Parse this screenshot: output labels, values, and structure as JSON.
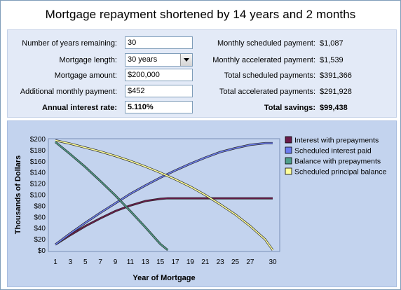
{
  "title": "Mortgage repayment shortened by 14 years and 2 months",
  "form": {
    "years_remaining": {
      "label": "Number of years remaining:",
      "value": "30"
    },
    "mortgage_length": {
      "label": "Mortgage length:",
      "value": "30 years"
    },
    "mortgage_amount": {
      "label": "Mortgage amount:",
      "value": "$200,000"
    },
    "additional_payment": {
      "label": "Additional monthly payment:",
      "value": "$452"
    },
    "interest_rate": {
      "label": "Annual interest rate:",
      "value": "5.110%"
    }
  },
  "results": {
    "monthly_scheduled": {
      "label": "Monthly scheduled payment:",
      "value": "$1,087"
    },
    "monthly_accelerated": {
      "label": "Monthly accelerated payment:",
      "value": "$1,539"
    },
    "total_scheduled": {
      "label": "Total scheduled payments:",
      "value": "$391,366"
    },
    "total_accelerated": {
      "label": "Total accelerated payments:",
      "value": "$291,928"
    },
    "total_savings": {
      "label": "Total savings:",
      "value": "$99,438"
    }
  },
  "chart_data": {
    "type": "line",
    "xlabel": "Year of Mortgage",
    "ylabel": "Thousands of Dollars",
    "xlim": [
      1,
      30
    ],
    "ylim": [
      0,
      200
    ],
    "xticks": [
      "1",
      "3",
      "5",
      "7",
      "9",
      "11",
      "13",
      "15",
      "17",
      "19",
      "21",
      "23",
      "25",
      "27",
      "30"
    ],
    "yticks": [
      "$0",
      "$20",
      "$40",
      "$60",
      "$80",
      "$100",
      "$120",
      "$140",
      "$160",
      "$180",
      "$200"
    ],
    "grid": false,
    "legend_position": "right",
    "series": [
      {
        "name": "Interest with prepayments",
        "color": "#6b1a4a",
        "x": [
          1,
          3,
          5,
          7,
          9,
          11,
          13,
          15,
          16,
          17,
          19,
          21,
          23,
          25,
          27,
          29,
          30
        ],
        "y": [
          10,
          27,
          43,
          57,
          70,
          80,
          88,
          92,
          93,
          93,
          93,
          93,
          93,
          93,
          93,
          93,
          93
        ]
      },
      {
        "name": "Scheduled interest paid",
        "color": "#6b7cf0",
        "x": [
          1,
          3,
          5,
          7,
          9,
          11,
          13,
          15,
          17,
          19,
          21,
          23,
          25,
          27,
          29,
          30
        ],
        "y": [
          10,
          30,
          49,
          67,
          84,
          101,
          116,
          130,
          143,
          155,
          166,
          176,
          183,
          189,
          192,
          192
        ]
      },
      {
        "name": "Balance with prepayments",
        "color": "#4f9f8a",
        "x": [
          1,
          3,
          5,
          7,
          9,
          11,
          13,
          15,
          16
        ],
        "y": [
          194,
          172,
          149,
          124,
          98,
          70,
          41,
          11,
          0
        ]
      },
      {
        "name": "Scheduled principal balance",
        "color": "#ffff99",
        "x": [
          1,
          3,
          5,
          7,
          9,
          11,
          13,
          15,
          17,
          19,
          21,
          23,
          25,
          27,
          29,
          30
        ],
        "y": [
          197,
          191,
          184,
          177,
          169,
          160,
          150,
          139,
          127,
          114,
          99,
          82,
          64,
          43,
          19,
          0
        ]
      }
    ]
  }
}
